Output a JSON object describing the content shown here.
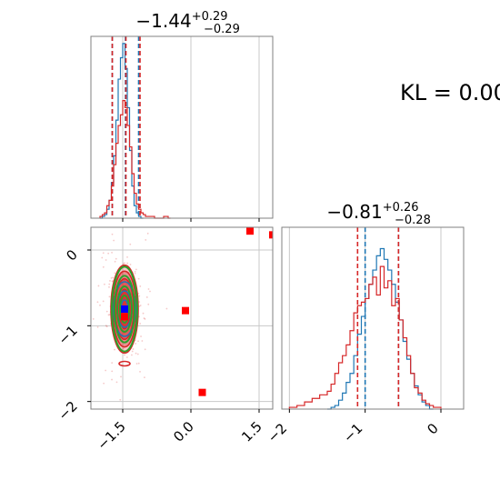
{
  "kl_label": "KL = 0.00",
  "colors": {
    "blue": "#1f77b4",
    "red": "#d62728",
    "green": "#2ca02c",
    "marker_blue": "#0000ff",
    "marker_red": "#ff0000",
    "grid": "#c8c8c8",
    "axis": "#808080"
  },
  "chart_data": [
    {
      "type": "histogram",
      "panel": "marginal-x",
      "title_value": "−1.44",
      "title_sup": "+0.29",
      "title_sub": "−0.29",
      "xlim": [
        -2.2,
        1.8
      ],
      "grid": true,
      "x_ticks": [
        -1.5,
        0.0,
        1.5
      ],
      "series": [
        {
          "color": "blue",
          "bins": [
            -2.0,
            -1.95,
            -1.9,
            -1.85,
            -1.8,
            -1.75,
            -1.7,
            -1.65,
            -1.6,
            -1.55,
            -1.5,
            -1.45,
            -1.4,
            -1.35,
            -1.3,
            -1.25,
            -1.2,
            -1.15,
            -1.1
          ],
          "values": [
            0.0,
            0.01,
            0.02,
            0.05,
            0.1,
            0.2,
            0.35,
            0.55,
            0.78,
            0.9,
            0.98,
            0.84,
            0.62,
            0.38,
            0.18,
            0.07,
            0.03,
            0.01,
            0.0
          ],
          "quantile_lines": [
            -1.73,
            -1.44,
            -1.15
          ]
        },
        {
          "color": "red",
          "bins": [
            -2.0,
            -1.95,
            -1.9,
            -1.85,
            -1.8,
            -1.75,
            -1.7,
            -1.65,
            -1.6,
            -1.55,
            -1.5,
            -1.45,
            -1.4,
            -1.35,
            -1.3,
            -1.25,
            -1.2,
            -1.15,
            -1.1,
            -1.05,
            -1.0,
            -0.9,
            -0.8,
            -0.7,
            -0.6,
            -0.5
          ],
          "values": [
            0.01,
            0.02,
            0.03,
            0.07,
            0.1,
            0.18,
            0.3,
            0.42,
            0.52,
            0.58,
            0.66,
            0.62,
            0.52,
            0.4,
            0.25,
            0.14,
            0.08,
            0.05,
            0.03,
            0.02,
            0.01,
            0.01,
            0.0,
            0.0,
            0.01,
            0.0
          ],
          "quantile_lines": [
            -1.73,
            -1.43,
            -1.12
          ]
        }
      ]
    },
    {
      "type": "contour",
      "panel": "joint",
      "xlim": [
        -2.2,
        1.8
      ],
      "ylim": [
        -2.1,
        0.3
      ],
      "grid": true,
      "x_ticks": [
        -1.5,
        0.0,
        1.5
      ],
      "y_ticks": [
        0,
        -1,
        -2
      ],
      "center": [
        -1.46,
        -0.78
      ],
      "blue_contours_sigma": [
        [
          0.08,
          0.12
        ],
        [
          0.16,
          0.24
        ],
        [
          0.24,
          0.36
        ]
      ],
      "red_contours_sigma": [
        [
          0.12,
          0.26
        ],
        [
          0.2,
          0.4
        ],
        [
          0.26,
          0.5
        ],
        [
          0.3,
          0.58
        ]
      ],
      "green_contours_sigma": [
        [
          0.1,
          0.18
        ],
        [
          0.16,
          0.3
        ],
        [
          0.22,
          0.44
        ],
        [
          0.28,
          0.56
        ]
      ],
      "points": [
        {
          "color": "marker_blue",
          "x": -1.46,
          "y": -0.78
        },
        {
          "color": "marker_red",
          "x": -1.46,
          "y": -0.88
        },
        {
          "color": "marker_red",
          "x": -0.12,
          "y": -0.8
        },
        {
          "color": "marker_red",
          "x": 0.25,
          "y": -1.88
        },
        {
          "color": "marker_red",
          "x": 1.3,
          "y": 0.25
        },
        {
          "color": "marker_red",
          "x": 1.8,
          "y": 0.2
        }
      ]
    },
    {
      "type": "histogram",
      "panel": "marginal-y",
      "title_value": "−0.81",
      "title_sup": "+0.26",
      "title_sub": "−0.28",
      "xlim": [
        -2.1,
        0.3
      ],
      "grid": true,
      "x_ticks": [
        -2,
        -1,
        0
      ],
      "series": [
        {
          "color": "blue",
          "bins": [
            -1.5,
            -1.45,
            -1.4,
            -1.35,
            -1.3,
            -1.25,
            -1.2,
            -1.15,
            -1.1,
            -1.05,
            -1.0,
            -0.95,
            -0.9,
            -0.85,
            -0.8,
            -0.75,
            -0.7,
            -0.65,
            -0.6,
            -0.55,
            -0.5,
            -0.45,
            -0.4,
            -0.35,
            -0.3,
            -0.25,
            -0.2,
            -0.15
          ],
          "values": [
            0.0,
            0.01,
            0.02,
            0.05,
            0.09,
            0.15,
            0.2,
            0.3,
            0.42,
            0.52,
            0.62,
            0.7,
            0.78,
            0.86,
            0.9,
            0.84,
            0.78,
            0.7,
            0.6,
            0.5,
            0.38,
            0.28,
            0.2,
            0.13,
            0.08,
            0.04,
            0.02,
            0.0
          ],
          "quantile_lines": [
            -1.0,
            -0.56
          ]
        },
        {
          "color": "red",
          "bins": [
            -2.0,
            -1.9,
            -1.8,
            -1.7,
            -1.6,
            -1.5,
            -1.45,
            -1.4,
            -1.35,
            -1.3,
            -1.25,
            -1.2,
            -1.15,
            -1.1,
            -1.05,
            -1.0,
            -0.95,
            -0.9,
            -0.85,
            -0.8,
            -0.75,
            -0.7,
            -0.65,
            -0.6,
            -0.55,
            -0.5,
            -0.45,
            -0.4,
            -0.35,
            -0.3,
            -0.25,
            -0.2,
            -0.15,
            -0.1
          ],
          "values": [
            0.01,
            0.02,
            0.04,
            0.06,
            0.08,
            0.1,
            0.14,
            0.2,
            0.26,
            0.3,
            0.36,
            0.44,
            0.54,
            0.58,
            0.6,
            0.62,
            0.7,
            0.74,
            0.64,
            0.8,
            0.68,
            0.72,
            0.58,
            0.62,
            0.5,
            0.4,
            0.3,
            0.2,
            0.12,
            0.09,
            0.05,
            0.03,
            0.02,
            0.01
          ],
          "quantile_lines": [
            -1.1,
            -0.56
          ]
        }
      ]
    }
  ]
}
